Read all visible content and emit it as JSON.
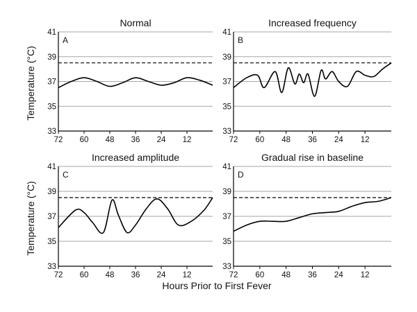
{
  "figure": {
    "ylabel": "Temperature (°C)",
    "xlabel": "Hours Prior to First Fever"
  },
  "chart_data": [
    {
      "type": "line",
      "letter": "A",
      "title": "Normal",
      "xlim": [
        72,
        0
      ],
      "ylim": [
        33,
        41
      ],
      "x_ticks": [
        72,
        60,
        48,
        36,
        24,
        12
      ],
      "y_ticks": [
        33,
        35,
        37,
        39,
        41
      ],
      "grid": true,
      "threshold": 38.5,
      "series": [
        {
          "x": [
            72,
            66,
            60,
            54,
            48,
            42,
            36,
            30,
            24,
            18,
            12,
            6,
            0
          ],
          "y": [
            36.5,
            37.0,
            37.3,
            37.0,
            36.6,
            36.9,
            37.3,
            37.0,
            36.7,
            36.9,
            37.3,
            37.1,
            36.7
          ]
        }
      ]
    },
    {
      "type": "line",
      "letter": "B",
      "title": "Increased frequency",
      "xlim": [
        72,
        0
      ],
      "ylim": [
        33,
        41
      ],
      "x_ticks": [
        72,
        60,
        48,
        36,
        24,
        12
      ],
      "y_ticks": [
        33,
        35,
        37,
        39,
        41
      ],
      "grid": true,
      "threshold": 38.5,
      "series": [
        {
          "x": [
            72,
            66,
            61,
            58,
            53,
            50,
            47,
            44,
            42,
            40,
            38,
            35,
            32,
            30,
            27,
            24,
            20,
            16,
            12,
            8,
            4,
            0
          ],
          "y": [
            36.5,
            37.3,
            37.5,
            36.5,
            37.8,
            36.1,
            38.1,
            36.8,
            37.6,
            36.9,
            37.6,
            35.8,
            37.9,
            37.2,
            37.8,
            37.0,
            36.6,
            37.8,
            37.5,
            37.4,
            38.0,
            38.5
          ]
        }
      ]
    },
    {
      "type": "line",
      "letter": "C",
      "title": "Increased amplitude",
      "xlim": [
        72,
        0
      ],
      "ylim": [
        33,
        41
      ],
      "x_ticks": [
        72,
        60,
        48,
        36,
        24,
        12
      ],
      "y_ticks": [
        33,
        35,
        37,
        39,
        41
      ],
      "grid": true,
      "threshold": 38.5,
      "series": [
        {
          "x": [
            72,
            64,
            60,
            56,
            51,
            47,
            44,
            40,
            36,
            31,
            26,
            21,
            16,
            10,
            4,
            0
          ],
          "y": [
            36.1,
            37.5,
            37.3,
            36.5,
            35.7,
            38.3,
            37.1,
            35.7,
            36.3,
            37.6,
            38.4,
            37.6,
            36.3,
            36.6,
            37.5,
            38.5
          ]
        }
      ]
    },
    {
      "type": "line",
      "letter": "D",
      "title": "Gradual rise in baseline",
      "xlim": [
        72,
        0
      ],
      "ylim": [
        33,
        41
      ],
      "x_ticks": [
        72,
        60,
        48,
        36,
        24,
        12
      ],
      "y_ticks": [
        33,
        35,
        37,
        39,
        41
      ],
      "grid": true,
      "threshold": 38.5,
      "series": [
        {
          "x": [
            72,
            66,
            60,
            54,
            48,
            42,
            36,
            30,
            24,
            18,
            12,
            6,
            0
          ],
          "y": [
            35.8,
            36.3,
            36.6,
            36.6,
            36.6,
            36.9,
            37.2,
            37.3,
            37.4,
            37.8,
            38.1,
            38.2,
            38.5
          ]
        }
      ]
    }
  ]
}
